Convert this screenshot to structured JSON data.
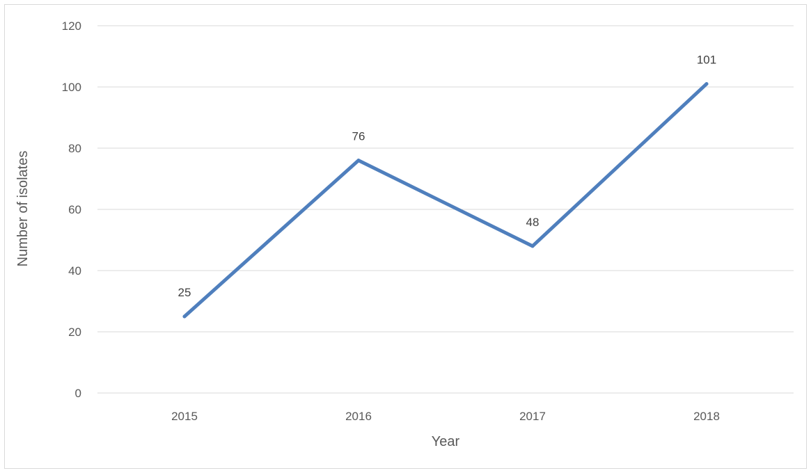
{
  "chart_data": {
    "type": "line",
    "title": "",
    "xlabel": "Year",
    "ylabel": "Number of isolates",
    "categories": [
      "2015",
      "2016",
      "2017",
      "2018"
    ],
    "series": [
      {
        "values": [
          25,
          76,
          48,
          101
        ],
        "color": "#4f7fbd"
      }
    ],
    "ylim": [
      0,
      120
    ],
    "yticks": [
      "0",
      "20",
      "40",
      "60",
      "80",
      "100",
      "120"
    ],
    "grid": true,
    "legend": "none",
    "data_labels": [
      "25",
      "76",
      "48",
      "101"
    ],
    "gridline_color": "#d9d9d9"
  }
}
